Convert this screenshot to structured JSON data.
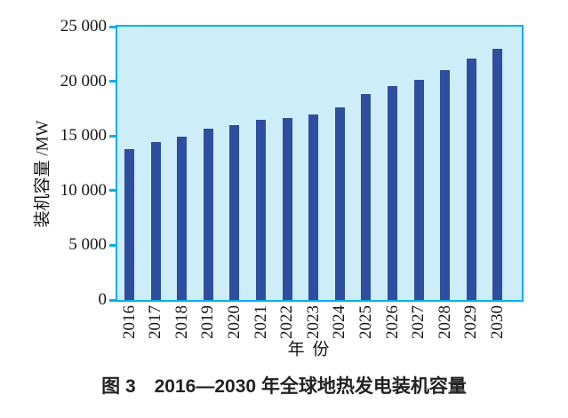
{
  "figure": {
    "caption": "图 3　2016—2030 年全球地热发电装机容量"
  },
  "chart_data": {
    "type": "bar",
    "title": "图 3　2016—2030 年全球地热发电装机容量",
    "xlabel": "年 份",
    "ylabel": "装机容量 /MW",
    "categories": [
      "2016",
      "2017",
      "2018",
      "2019",
      "2020",
      "2021",
      "2022",
      "2023",
      "2024",
      "2025",
      "2026",
      "2027",
      "2028",
      "2029",
      "2030"
    ],
    "values": [
      13800,
      14450,
      14950,
      15700,
      15950,
      16450,
      16650,
      17000,
      17600,
      18800,
      19550,
      20150,
      21050,
      22050,
      22950
    ],
    "ylim": [
      0,
      25000
    ],
    "y_ticks": [
      0,
      5000,
      10000,
      15000,
      20000,
      25000
    ],
    "y_tick_labels": [
      "0",
      "5 000",
      "10 000",
      "15 000",
      "20 000",
      "25 000"
    ],
    "legend": null,
    "grid": false,
    "colors": {
      "bar": "#2e4ea0",
      "plot_background": "#cdedf9",
      "axis": "#00aeef",
      "text": "#171717"
    }
  }
}
